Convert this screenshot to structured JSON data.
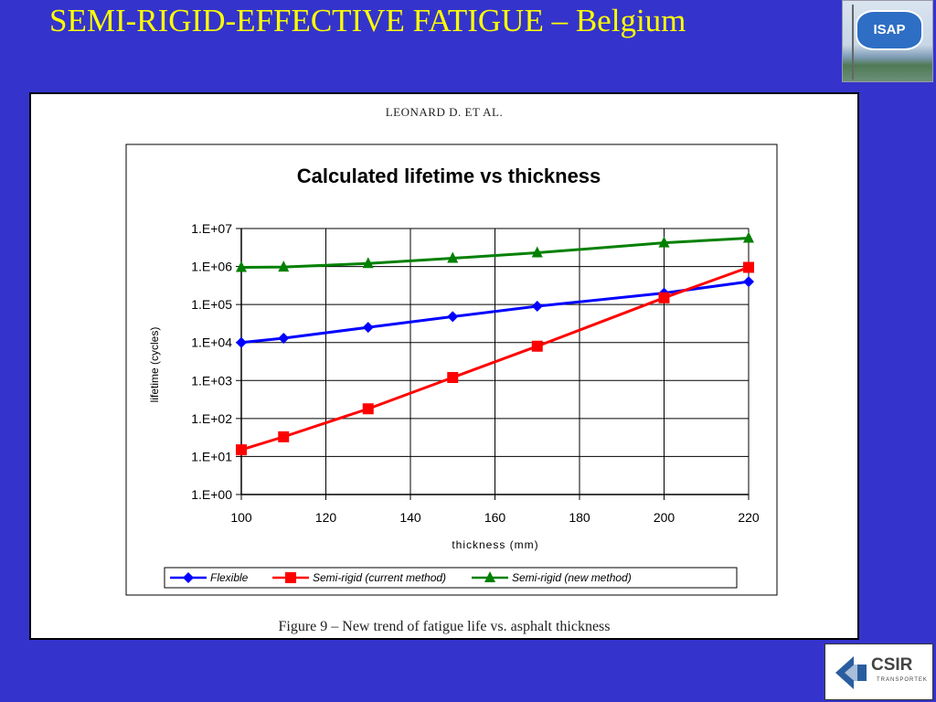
{
  "slide": {
    "title": "SEMI-RIGID-EFFECTIVE FATIGUE – Belgium"
  },
  "logos": {
    "isap_label": "ISAP",
    "csir_label": "CSIR",
    "csir_sub": "TRANSPORTEK"
  },
  "figure": {
    "header": "LEONARD D. ET AL.",
    "caption": "Figure 9 – New trend of fatigue life vs. asphalt thickness"
  },
  "chart_data": {
    "type": "line",
    "title": "Calculated lifetime vs thickness",
    "xlabel": "thickness (mm)",
    "ylabel": "lifetime (cycles)",
    "xlim": [
      100,
      220
    ],
    "x_ticks": [
      100,
      120,
      140,
      160,
      180,
      200,
      220
    ],
    "y_scale": "log",
    "ylim": [
      1,
      10000000
    ],
    "y_ticks": [
      {
        "value": 1,
        "label": "1.E+00"
      },
      {
        "value": 10,
        "label": "1.E+01"
      },
      {
        "value": 100,
        "label": "1.E+02"
      },
      {
        "value": 1000,
        "label": "1.E+03"
      },
      {
        "value": 10000,
        "label": "1.E+04"
      },
      {
        "value": 100000,
        "label": "1.E+05"
      },
      {
        "value": 1000000,
        "label": "1.E+06"
      },
      {
        "value": 10000000,
        "label": "1.E+07"
      }
    ],
    "grid": true,
    "legend_position": "bottom",
    "series": [
      {
        "name": "Flexible",
        "color": "#0000ff",
        "marker": "diamond",
        "points": [
          [
            100,
            10000
          ],
          [
            110,
            13000
          ],
          [
            130,
            25000
          ],
          [
            150,
            48000
          ],
          [
            170,
            90000
          ],
          [
            200,
            200000
          ],
          [
            220,
            400000
          ]
        ]
      },
      {
        "name": "Semi-rigid (current method)",
        "color": "#ff0000",
        "marker": "square",
        "points": [
          [
            100,
            15
          ],
          [
            110,
            33
          ],
          [
            130,
            180
          ],
          [
            150,
            1200
          ],
          [
            170,
            8000
          ],
          [
            200,
            150000
          ],
          [
            220,
            950000
          ]
        ]
      },
      {
        "name": "Semi-rigid (new method)",
        "color": "#008000",
        "marker": "triangle",
        "points": [
          [
            100,
            950000
          ],
          [
            110,
            970000
          ],
          [
            130,
            1200000
          ],
          [
            150,
            1650000
          ],
          [
            170,
            2300000
          ],
          [
            200,
            4200000
          ],
          [
            220,
            5600000
          ]
        ]
      }
    ]
  }
}
